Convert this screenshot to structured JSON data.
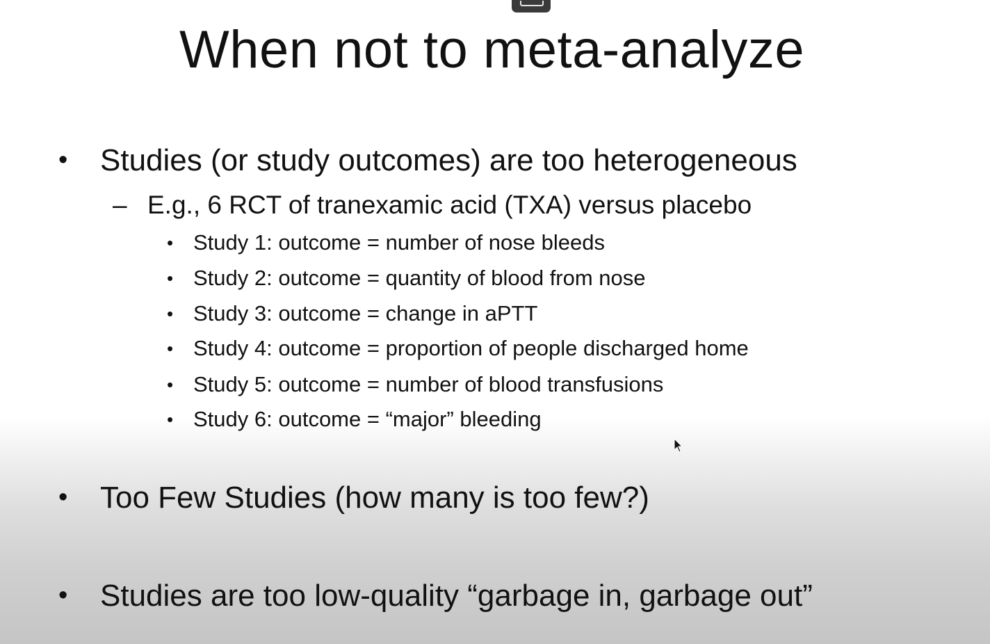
{
  "slide": {
    "title": "When not to meta-analyze",
    "bullet_symbol": "•",
    "dash_symbol": "–",
    "points": [
      {
        "text": "Studies (or study outcomes) are too heterogeneous",
        "sub": {
          "text": "E.g., 6 RCT of tranexamic acid (TXA) versus placebo",
          "items": [
            "Study 1: outcome = number of nose bleeds",
            "Study 2:  outcome = quantity of blood from nose",
            "Study 3: outcome = change in aPTT",
            "Study 4: outcome = proportion of people discharged home",
            "Study 5: outcome = number of blood transfusions",
            "Study 6: outcome = “major” bleeding"
          ]
        }
      },
      {
        "text": "Too Few Studies (how many is too few?)"
      },
      {
        "text": "Studies are too low-quality “garbage in, garbage out”"
      }
    ]
  },
  "overlay": {
    "cursor_icon": "mouse-pointer-icon",
    "video_control_icon": "player-control-icon"
  }
}
